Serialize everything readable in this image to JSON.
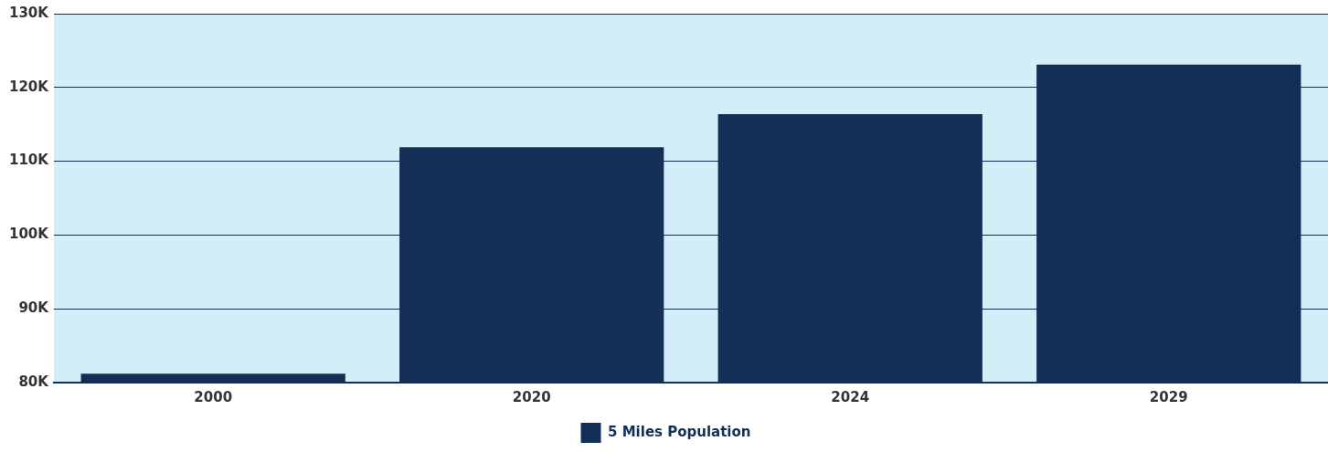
{
  "chart_data": {
    "type": "bar",
    "categories": [
      "2000",
      "2020",
      "2024",
      "2029"
    ],
    "series": [
      {
        "name": "5 Miles Population",
        "color": "#142f57",
        "values": [
          81200,
          111900,
          116400,
          123100
        ]
      }
    ],
    "ylim": [
      80000,
      130000
    ],
    "yticks": [
      {
        "value": 80000,
        "label": "80K"
      },
      {
        "value": 90000,
        "label": "90K"
      },
      {
        "value": 100000,
        "label": "100K"
      },
      {
        "value": 110000,
        "label": "110K"
      },
      {
        "value": 120000,
        "label": "120K"
      },
      {
        "value": 130000,
        "label": "130K"
      }
    ],
    "grid": "y",
    "legend": "bottom"
  }
}
